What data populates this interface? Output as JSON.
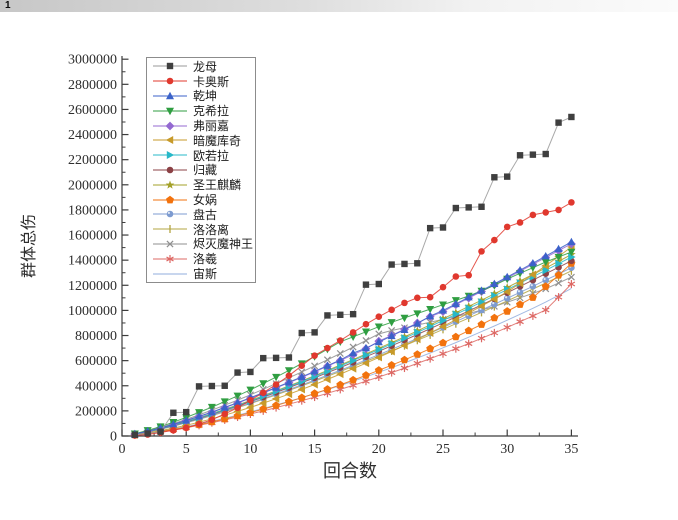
{
  "page": {
    "badge": "1"
  },
  "chart_data": {
    "type": "line",
    "xlabel": "回合数",
    "ylabel": "群体总伤",
    "xlim": [
      0,
      35
    ],
    "ylim": [
      0,
      3000000
    ],
    "grid": false,
    "legend_position": "upper-left-inside",
    "x_ticks": [
      0,
      5,
      10,
      15,
      20,
      25,
      30,
      35
    ],
    "y_ticks": [
      0,
      200000,
      400000,
      600000,
      800000,
      1000000,
      1200000,
      1400000,
      1600000,
      1800000,
      2000000,
      2200000,
      2400000,
      2600000,
      2800000,
      3000000
    ],
    "x": [
      1,
      2,
      3,
      4,
      5,
      6,
      7,
      8,
      9,
      10,
      11,
      12,
      13,
      14,
      15,
      16,
      17,
      18,
      19,
      20,
      21,
      22,
      23,
      24,
      25,
      26,
      27,
      28,
      29,
      30,
      31,
      32,
      33,
      34,
      35
    ],
    "series": [
      {
        "name": "龙母",
        "marker": "square",
        "color": "#3f3f3f",
        "line_color": "#9a9a9a",
        "values": [
          10000,
          20000,
          35000,
          185000,
          190000,
          395000,
          398000,
          400000,
          505000,
          510000,
          620000,
          622000,
          625000,
          820000,
          825000,
          960000,
          965000,
          970000,
          1205000,
          1210000,
          1365000,
          1370000,
          1375000,
          1655000,
          1660000,
          1815000,
          1820000,
          1825000,
          2060000,
          2065000,
          2235000,
          2240000,
          2245000,
          2495000,
          2540000
        ]
      },
      {
        "name": "卡奥斯",
        "marker": "circle",
        "color": "#e0382e",
        "line_color": "#e0382e",
        "values": [
          5000,
          12000,
          28000,
          45000,
          65000,
          95000,
          130000,
          175000,
          225000,
          285000,
          345000,
          410000,
          480000,
          560000,
          640000,
          700000,
          760000,
          825000,
          890000,
          950000,
          1005000,
          1060000,
          1100000,
          1105000,
          1185000,
          1270000,
          1280000,
          1470000,
          1560000,
          1665000,
          1700000,
          1760000,
          1780000,
          1800000,
          1860000
        ]
      },
      {
        "name": "乾坤",
        "marker": "triangle-up",
        "color": "#3b62c9",
        "line_color": "#3b62c9",
        "values": [
          15000,
          38000,
          64000,
          93000,
          124000,
          157000,
          190000,
          228000,
          265000,
          305000,
          345000,
          386000,
          428000,
          471000,
          515000,
          560000,
          606000,
          660000,
          700000,
          748000,
          797000,
          846000,
          896000,
          955000,
          1000000,
          1052000,
          1105000,
          1158000,
          1212000,
          1266000,
          1320000,
          1376000,
          1432000,
          1489000,
          1545000
        ]
      },
      {
        "name": "克希拉",
        "marker": "triangle-down",
        "color": "#2f9e41",
        "line_color": "#2f9e41",
        "values": [
          18000,
          45000,
          75000,
          110000,
          148000,
          188000,
          230000,
          274000,
          320000,
          368000,
          418000,
          469000,
          522000,
          577000,
          633000,
          691000,
          750000,
          790000,
          830000,
          870000,
          905000,
          940000,
          975000,
          1010000,
          1045000,
          1080000,
          1115000,
          1155000,
          1200000,
          1250000,
          1295000,
          1340000,
          1385000,
          1425000,
          1465000
        ]
      },
      {
        "name": "弗丽嘉",
        "marker": "diamond",
        "color": "#9469d1",
        "line_color": "#9469d1",
        "values": [
          15000,
          37000,
          63000,
          92000,
          123000,
          155000,
          189000,
          226000,
          263000,
          302000,
          342000,
          383000,
          424000,
          467000,
          510000,
          556000,
          601000,
          647000,
          695000,
          755000,
          800000,
          850000,
          900000,
          950000,
          990000,
          1045000,
          1098000,
          1150000,
          1204000,
          1258000,
          1312000,
          1367000,
          1422000,
          1476000,
          1530000
        ]
      },
      {
        "name": "暗魔库奇",
        "marker": "triangle-left",
        "color": "#c79a2a",
        "line_color": "#c79a2a",
        "values": [
          10000,
          25000,
          43000,
          63000,
          85000,
          110000,
          137000,
          166000,
          196000,
          228000,
          262000,
          297000,
          333000,
          371000,
          410000,
          451000,
          493000,
          536000,
          580000,
          626000,
          673000,
          721000,
          770000,
          820000,
          872000,
          925000,
          979000,
          1034000,
          1090000,
          1148000,
          1216000,
          1285000,
          1356000,
          1430000,
          1505000
        ]
      },
      {
        "name": "欧若拉",
        "marker": "triangle-right",
        "color": "#27b8c8",
        "line_color": "#27b8c8",
        "values": [
          14000,
          34000,
          58000,
          86000,
          114000,
          144000,
          176000,
          209000,
          244000,
          279000,
          316000,
          355000,
          393000,
          433000,
          473000,
          515000,
          557000,
          600000,
          644000,
          688000,
          734000,
          779000,
          825000,
          872000,
          920000,
          969000,
          1017000,
          1066000,
          1116000,
          1166000,
          1217000,
          1268000,
          1319000,
          1372000,
          1425000
        ]
      },
      {
        "name": "归藏",
        "marker": "circle",
        "color": "#8b4145",
        "line_color": "#8b4145",
        "values": [
          14000,
          33000,
          57000,
          84000,
          112000,
          141000,
          172000,
          205000,
          239000,
          274000,
          310000,
          347000,
          385000,
          424000,
          463000,
          504000,
          545000,
          587000,
          631000,
          674000,
          718000,
          763000,
          808000,
          854000,
          901000,
          948000,
          996000,
          1044000,
          1092000,
          1141000,
          1191000,
          1241000,
          1292000,
          1343000,
          1395000
        ]
      },
      {
        "name": "圣王麒麟",
        "marker": "star",
        "color": "#a3a028",
        "line_color": "#a3a028",
        "values": [
          14000,
          35000,
          59000,
          87000,
          116000,
          146000,
          178000,
          212000,
          247000,
          283000,
          321000,
          360000,
          399000,
          439000,
          480000,
          522000,
          565000,
          608000,
          653000,
          698000,
          744000,
          790000,
          837000,
          885000,
          933000,
          982000,
          1032000,
          1081000,
          1132000,
          1182000,
          1234000,
          1286000,
          1338000,
          1391000,
          1445000
        ]
      },
      {
        "name": "女娲",
        "marker": "pentagon",
        "color": "#f2720d",
        "line_color": "#f2720d",
        "values": [
          8000,
          20000,
          35000,
          52000,
          70000,
          90000,
          112000,
          135000,
          160000,
          186000,
          214000,
          243000,
          273000,
          305000,
          338000,
          372000,
          408000,
          445000,
          483000,
          523000,
          564000,
          606000,
          650000,
          695000,
          741000,
          789000,
          838000,
          888000,
          940000,
          993000,
          1047000,
          1103000,
          1190000,
          1280000,
          1375000
        ]
      },
      {
        "name": "盘古",
        "marker": "sphere",
        "color": "#7d9bd0",
        "line_color": "#7d9bd0",
        "values": [
          13000,
          32000,
          55000,
          80000,
          107000,
          135000,
          165000,
          197000,
          229000,
          263000,
          298000,
          334000,
          370000,
          407000,
          445000,
          484000,
          524000,
          564000,
          606000,
          647000,
          690000,
          733000,
          776000,
          820000,
          865000,
          911000,
          957000,
          1003000,
          1049000,
          1096000,
          1144000,
          1192000,
          1241000,
          1290000,
          1340000
        ]
      },
      {
        "name": "洛洛离",
        "marker": "vline",
        "color": "#b3a441",
        "line_color": "#b3a441",
        "values": [
          13000,
          32000,
          54000,
          79000,
          105000,
          133000,
          162000,
          193000,
          225000,
          258000,
          292000,
          327000,
          363000,
          400000,
          437000,
          475000,
          514000,
          554000,
          594000,
          635000,
          677000,
          719000,
          762000,
          805000,
          849000,
          894000,
          939000,
          984000,
          1030000,
          1076000,
          1123000,
          1170000,
          1218000,
          1266000,
          1315000
        ]
      },
      {
        "name": "烬灭魔神王",
        "marker": "x",
        "color": "#8f8f8f",
        "line_color": "#8f8f8f",
        "values": [
          16000,
          40000,
          68000,
          99000,
          133000,
          168000,
          206000,
          245000,
          286000,
          328000,
          372000,
          417000,
          463000,
          510000,
          558000,
          607000,
          657000,
          708000,
          760000,
          813000,
          840000,
          862000,
          884000,
          906000,
          928000,
          950000,
          975000,
          1002000,
          1032000,
          1065000,
          1100000,
          1135000,
          1172000,
          1218000,
          1265000
        ]
      },
      {
        "name": "洛羲",
        "marker": "asterisk",
        "color": "#dd6864",
        "line_color": "#dd6864",
        "values": [
          8000,
          19000,
          33000,
          49000,
          66000,
          85000,
          106000,
          128000,
          151000,
          175000,
          200000,
          226000,
          253000,
          281000,
          310000,
          340000,
          371000,
          403000,
          436000,
          470000,
          505000,
          541000,
          578000,
          616000,
          655000,
          695000,
          736000,
          778000,
          821000,
          865000,
          910000,
          956000,
          1003000,
          1106000,
          1210000
        ]
      },
      {
        "name": "宙斯",
        "marker": "none",
        "color": "#92aede",
        "line_color": "#92aede",
        "values": [
          9000,
          22000,
          38000,
          56000,
          75000,
          96000,
          118000,
          142000,
          166000,
          192000,
          219000,
          247000,
          276000,
          306000,
          337000,
          369000,
          402000,
          436000,
          471000,
          507000,
          544000,
          582000,
          621000,
          661000,
          702000,
          744000,
          787000,
          831000,
          876000,
          922000,
          969000,
          1017000,
          1066000,
          1120000,
          1175000
        ]
      }
    ]
  }
}
